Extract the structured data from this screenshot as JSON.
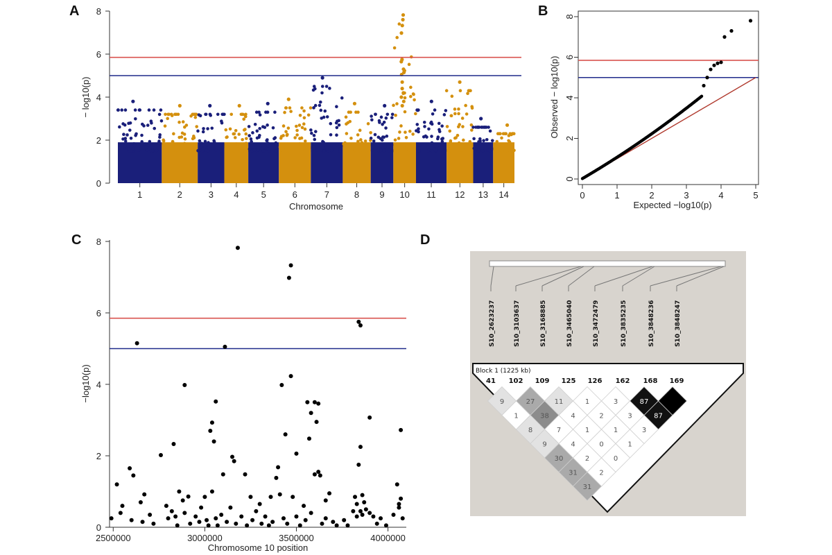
{
  "panel_labels": [
    "A",
    "B",
    "C",
    "D"
  ],
  "chart_data": [
    {
      "panel": "A",
      "type": "scatter",
      "subtype": "manhattan",
      "xlabel": "Chromosome",
      "ylabel": "− log10(p)",
      "ylim": [
        0,
        8
      ],
      "yticks": [
        0,
        2,
        4,
        6,
        8
      ],
      "categories": [
        "1",
        "2",
        "3",
        "4",
        "5",
        "6",
        "7",
        "8",
        "9",
        "10",
        "11",
        "12",
        "13",
        "14"
      ],
      "colors": {
        "odd": "#1a1f7a",
        "even": "#d4900e"
      },
      "thresholds": [
        {
          "value": 5.85,
          "color": "#d9534f"
        },
        {
          "value": 5.0,
          "color": "#1f2a8a"
        }
      ],
      "peak_max_by_chromosome": [
        3.8,
        3.6,
        3.6,
        3.6,
        3.7,
        3.9,
        4.9,
        3.7,
        3.6,
        7.8,
        3.8,
        4.7,
        3.0,
        2.7
      ],
      "grid": false
    },
    {
      "panel": "B",
      "type": "scatter",
      "subtype": "qq",
      "xlabel": "Expected  −log10(p)",
      "ylabel": "Observed  − log10(p)",
      "xlim": [
        0,
        5
      ],
      "ylim": [
        0,
        8
      ],
      "xticks": [
        0,
        1,
        2,
        3,
        4,
        5
      ],
      "yticks": [
        0,
        2,
        4,
        6,
        8
      ],
      "thresholds": [
        {
          "value": 5.85,
          "color": "#d9534f"
        },
        {
          "value": 5.0,
          "color": "#1f2a8a"
        }
      ],
      "diagonal_color": "#b03a2e",
      "tail_points": [
        {
          "x": 3.5,
          "y": 4.6
        },
        {
          "x": 3.6,
          "y": 5.0
        },
        {
          "x": 3.7,
          "y": 5.4
        },
        {
          "x": 3.8,
          "y": 5.6
        },
        {
          "x": 3.9,
          "y": 5.7
        },
        {
          "x": 4.0,
          "y": 5.75
        },
        {
          "x": 4.1,
          "y": 7.0
        },
        {
          "x": 4.3,
          "y": 7.3
        },
        {
          "x": 4.85,
          "y": 7.8
        }
      ],
      "grid": false
    },
    {
      "panel": "C",
      "type": "scatter",
      "xlabel": "Chromosome 10 position",
      "ylabel": "−log10(p)",
      "xlim": [
        2480000,
        4100000
      ],
      "ylim": [
        0,
        8
      ],
      "xticks": [
        2500000,
        3000000,
        3500000,
        4000000
      ],
      "yticks": [
        0,
        2,
        4,
        6,
        8
      ],
      "thresholds": [
        {
          "value": 5.85,
          "color": "#d9534f"
        },
        {
          "value": 5.0,
          "color": "#1f2a8a"
        }
      ],
      "points": [
        [
          2630000,
          5.15
        ],
        [
          2890000,
          3.98
        ],
        [
          3110000,
          5.05
        ],
        [
          3180000,
          7.82
        ],
        [
          3470000,
          7.33
        ],
        [
          3460000,
          6.98
        ],
        [
          3840000,
          5.75
        ],
        [
          3850000,
          5.65
        ],
        [
          3420000,
          3.98
        ],
        [
          3470000,
          4.23
        ],
        [
          3060000,
          3.52
        ],
        [
          3600000,
          3.5
        ],
        [
          3620000,
          3.46
        ],
        [
          3900000,
          3.07
        ],
        [
          3560000,
          3.5
        ],
        [
          3580000,
          3.2
        ],
        [
          3040000,
          2.93
        ],
        [
          3030000,
          2.7
        ],
        [
          3440000,
          2.6
        ],
        [
          3610000,
          2.95
        ],
        [
          4070000,
          2.72
        ],
        [
          2830000,
          2.33
        ],
        [
          3150000,
          1.97
        ],
        [
          3160000,
          1.85
        ],
        [
          3050000,
          2.4
        ],
        [
          2760000,
          2.02
        ],
        [
          3570000,
          2.48
        ],
        [
          3850000,
          2.25
        ],
        [
          3500000,
          2.06
        ],
        [
          3840000,
          1.75
        ],
        [
          2590000,
          1.65
        ],
        [
          2610000,
          1.45
        ],
        [
          2670000,
          0.92
        ],
        [
          2520000,
          1.2
        ],
        [
          3100000,
          1.48
        ],
        [
          3220000,
          1.48
        ],
        [
          3400000,
          1.68
        ],
        [
          3390000,
          1.38
        ],
        [
          3600000,
          1.48
        ],
        [
          3620000,
          1.55
        ],
        [
          3630000,
          1.45
        ],
        [
          2860000,
          1.0
        ],
        [
          2910000,
          0.86
        ],
        [
          3000000,
          0.85
        ],
        [
          3040000,
          1.0
        ],
        [
          3250000,
          0.85
        ],
        [
          3300000,
          0.65
        ],
        [
          3360000,
          0.85
        ],
        [
          3410000,
          0.92
        ],
        [
          3480000,
          0.85
        ],
        [
          3540000,
          0.6
        ],
        [
          3660000,
          0.75
        ],
        [
          3680000,
          0.95
        ],
        [
          4050000,
          1.2
        ],
        [
          4070000,
          0.8
        ],
        [
          4060000,
          0.65
        ],
        [
          4060000,
          0.55
        ],
        [
          3820000,
          0.85
        ],
        [
          3830000,
          0.65
        ],
        [
          3860000,
          0.9
        ],
        [
          3870000,
          0.7
        ],
        [
          3880000,
          0.5
        ],
        [
          3850000,
          0.45
        ],
        [
          3900000,
          0.4
        ],
        [
          3920000,
          0.3
        ],
        [
          3860000,
          0.35
        ],
        [
          3810000,
          0.45
        ],
        [
          3830000,
          0.3
        ],
        [
          2490000,
          0.25
        ],
        [
          2540000,
          0.4
        ],
        [
          2550000,
          0.6
        ],
        [
          2600000,
          0.2
        ],
        [
          2650000,
          0.7
        ],
        [
          2660000,
          0.15
        ],
        [
          2700000,
          0.35
        ],
        [
          2720000,
          0.1
        ],
        [
          2790000,
          0.6
        ],
        [
          2800000,
          0.25
        ],
        [
          2820000,
          0.45
        ],
        [
          2840000,
          0.3
        ],
        [
          2850000,
          0.05
        ],
        [
          2880000,
          0.75
        ],
        [
          2890000,
          0.4
        ],
        [
          2920000,
          0.1
        ],
        [
          2950000,
          0.3
        ],
        [
          2970000,
          0.15
        ],
        [
          2980000,
          0.55
        ],
        [
          3010000,
          0.2
        ],
        [
          3020000,
          0.05
        ],
        [
          3060000,
          0.25
        ],
        [
          3070000,
          0.05
        ],
        [
          3090000,
          0.35
        ],
        [
          3120000,
          0.15
        ],
        [
          3140000,
          0.55
        ],
        [
          3170000,
          0.1
        ],
        [
          3200000,
          0.3
        ],
        [
          3230000,
          0.05
        ],
        [
          3260000,
          0.2
        ],
        [
          3280000,
          0.45
        ],
        [
          3310000,
          0.1
        ],
        [
          3330000,
          0.3
        ],
        [
          3350000,
          0.05
        ],
        [
          3370000,
          0.15
        ],
        [
          3430000,
          0.25
        ],
        [
          3450000,
          0.1
        ],
        [
          3500000,
          0.3
        ],
        [
          3520000,
          0.05
        ],
        [
          3550000,
          0.2
        ],
        [
          3580000,
          0.4
        ],
        [
          3640000,
          0.1
        ],
        [
          3660000,
          0.25
        ],
        [
          3700000,
          0.15
        ],
        [
          3720000,
          0.05
        ],
        [
          3760000,
          0.2
        ],
        [
          3780000,
          0.05
        ],
        [
          3940000,
          0.1
        ],
        [
          3960000,
          0.25
        ],
        [
          3990000,
          0.05
        ],
        [
          4030000,
          0.35
        ],
        [
          4080000,
          0.25
        ]
      ],
      "grid": false
    },
    {
      "panel": "D",
      "type": "heatmap",
      "subtype": "linkage-disequilibrium",
      "block_label": "Block 1 (1225 kb)",
      "markers": [
        "S10_2623237",
        "S10_3103637",
        "S10_3168885",
        "S10_3465040",
        "S10_3472479",
        "S10_3835235",
        "S10_3848236",
        "S10_3848247"
      ],
      "marker_numbers": [
        "41",
        "102",
        "109",
        "125",
        "126",
        "162",
        "168",
        "169"
      ],
      "ld_values": {
        "row1": [
          "9",
          "27",
          "11",
          "1",
          "3",
          "87",
          ""
        ],
        "row2": [
          "1",
          "38",
          "4",
          "2",
          "3",
          "87"
        ],
        "row3": [
          "8",
          "7",
          "1",
          "1",
          "3"
        ],
        "row4": [
          "9",
          "4",
          "0",
          "1"
        ],
        "row5": [
          "30",
          "2",
          "0"
        ],
        "row6": [
          "31",
          "2"
        ],
        "row7": [
          "31"
        ]
      }
    }
  ]
}
